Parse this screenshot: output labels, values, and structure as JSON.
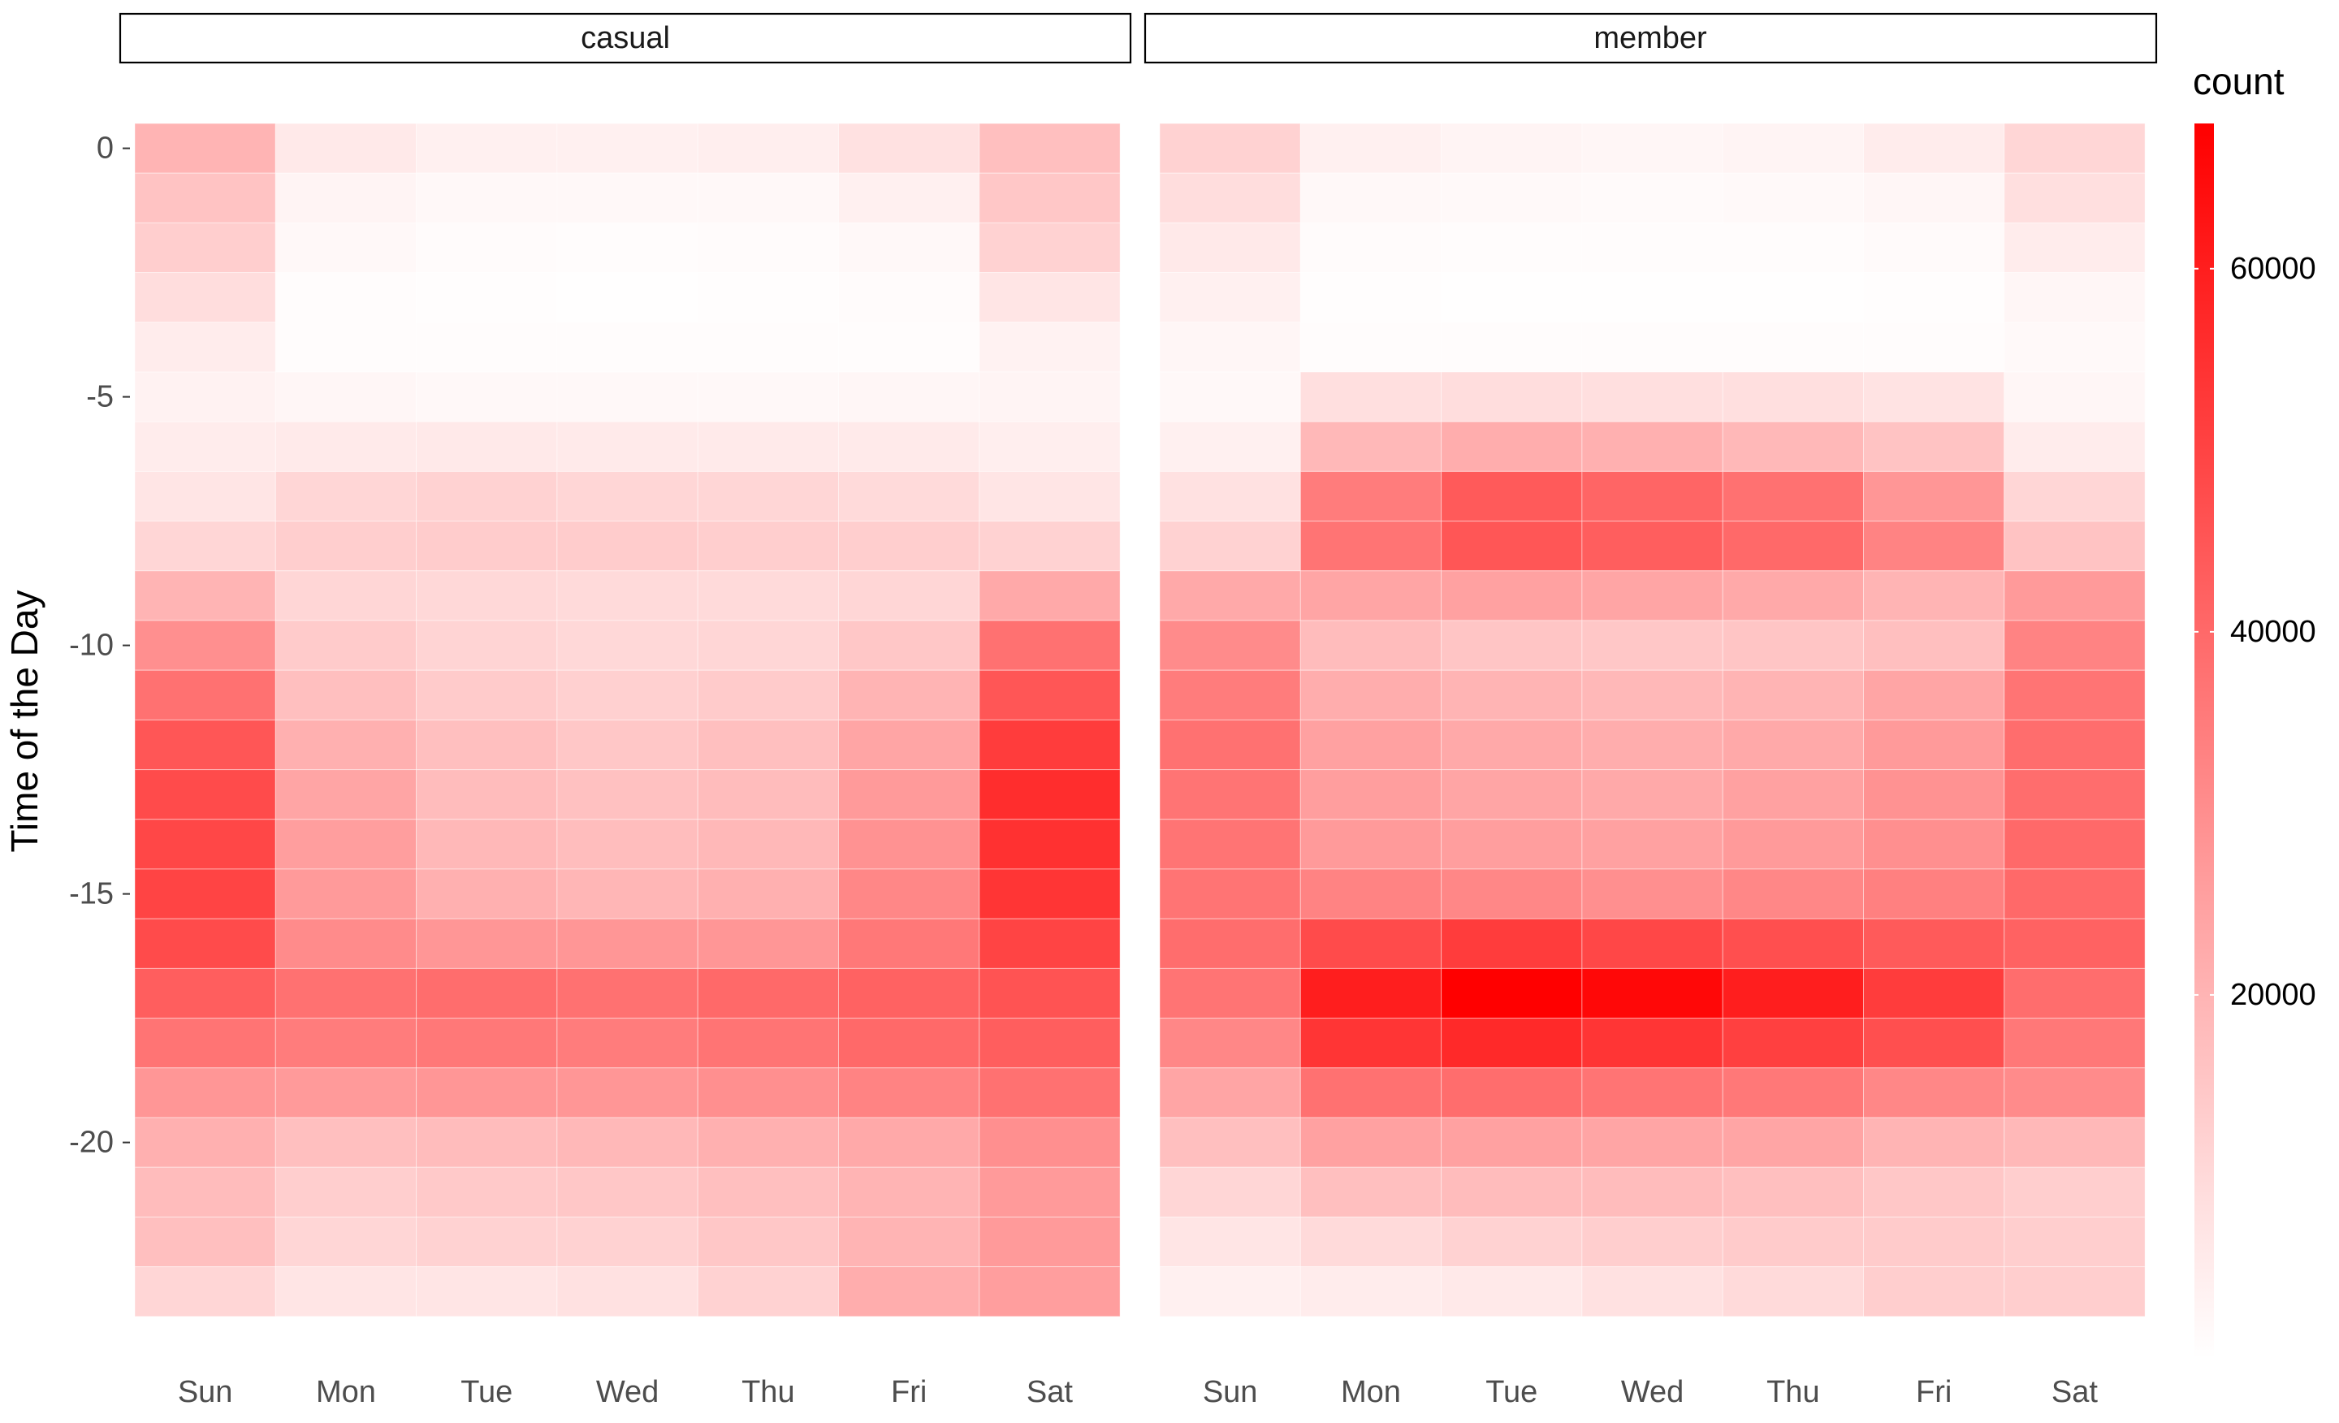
{
  "chart_data": {
    "type": "heatmap",
    "ylabel": "Time of the Day",
    "xlabel": "",
    "panels": [
      {
        "name": "casual",
        "days": [
          "Sun",
          "Mon",
          "Tue",
          "Wed",
          "Thu",
          "Fri",
          "Sat"
        ],
        "hours": [
          0,
          -1,
          -2,
          -3,
          -4,
          -5,
          -6,
          -7,
          -8,
          -9,
          -10,
          -11,
          -12,
          -13,
          -14,
          -15,
          -16,
          -17,
          -18,
          -19,
          -20,
          -21,
          -22,
          -23
        ],
        "values": [
          [
            20000,
            6000,
            4000,
            4000,
            4500,
            8000,
            17000
          ],
          [
            16000,
            3000,
            2000,
            1800,
            2000,
            4000,
            15000
          ],
          [
            13000,
            1800,
            1000,
            900,
            1000,
            2000,
            12000
          ],
          [
            9000,
            900,
            500,
            400,
            500,
            1000,
            7000
          ],
          [
            5000,
            800,
            700,
            700,
            700,
            900,
            3500
          ],
          [
            3500,
            2500,
            2000,
            2000,
            2000,
            2500,
            3000
          ],
          [
            5000,
            5500,
            6000,
            5500,
            5500,
            5500,
            4500
          ],
          [
            7000,
            11000,
            12000,
            11000,
            11000,
            10000,
            7000
          ],
          [
            11000,
            13000,
            13500,
            13500,
            13000,
            13000,
            12000
          ],
          [
            20000,
            11000,
            10500,
            10000,
            10000,
            11000,
            23000
          ],
          [
            30000,
            14000,
            11500,
            10500,
            11000,
            15000,
            38000
          ],
          [
            38000,
            17000,
            14000,
            12500,
            14000,
            20000,
            45000
          ],
          [
            45000,
            21000,
            17000,
            15000,
            17000,
            24000,
            52000
          ],
          [
            48000,
            24000,
            18000,
            16500,
            18000,
            27000,
            56000
          ],
          [
            49000,
            26000,
            19000,
            17500,
            19000,
            29000,
            55000
          ],
          [
            50000,
            27000,
            21000,
            19500,
            21000,
            32000,
            54000
          ],
          [
            48000,
            31000,
            28000,
            28000,
            28000,
            36000,
            50000
          ],
          [
            43000,
            38000,
            39000,
            38000,
            40000,
            42000,
            46000
          ],
          [
            37000,
            35000,
            36000,
            35000,
            37000,
            40000,
            43000
          ],
          [
            28000,
            27000,
            28000,
            28000,
            30000,
            33000,
            38000
          ],
          [
            21000,
            17000,
            18000,
            19000,
            21000,
            23000,
            30000
          ],
          [
            18000,
            13000,
            14500,
            15000,
            17000,
            20000,
            27000
          ],
          [
            17000,
            11000,
            12000,
            12000,
            15000,
            20000,
            27000
          ],
          [
            11000,
            7000,
            7000,
            8000,
            12000,
            22000,
            26000
          ]
        ]
      },
      {
        "name": "member",
        "days": [
          "Sun",
          "Mon",
          "Tue",
          "Wed",
          "Thu",
          "Fri",
          "Sat"
        ],
        "hours": [
          0,
          -1,
          -2,
          -3,
          -4,
          -5,
          -6,
          -7,
          -8,
          -9,
          -10,
          -11,
          -12,
          -13,
          -14,
          -15,
          -16,
          -17,
          -18,
          -19,
          -20,
          -21,
          -22,
          -23
        ],
        "values": [
          [
            12000,
            4000,
            3000,
            2500,
            3000,
            5000,
            11000
          ],
          [
            9000,
            2000,
            1500,
            1300,
            1500,
            2500,
            8500
          ],
          [
            6000,
            1000,
            700,
            700,
            800,
            1300,
            5000
          ],
          [
            4000,
            600,
            400,
            400,
            400,
            600,
            2500
          ],
          [
            2500,
            900,
            900,
            900,
            900,
            900,
            1500
          ],
          [
            2000,
            8500,
            9000,
            8500,
            8500,
            7500,
            2500
          ],
          [
            4000,
            19000,
            22000,
            21000,
            19000,
            16000,
            5000
          ],
          [
            8000,
            35000,
            44000,
            41000,
            38000,
            28000,
            11000
          ],
          [
            12000,
            37000,
            45000,
            43000,
            40000,
            33000,
            16000
          ],
          [
            23000,
            24000,
            25000,
            24000,
            23000,
            20000,
            27000
          ],
          [
            31000,
            18000,
            15500,
            15000,
            15500,
            17000,
            33000
          ],
          [
            35000,
            22000,
            20000,
            19000,
            20000,
            24000,
            37000
          ],
          [
            38000,
            25000,
            23000,
            22000,
            23000,
            27000,
            39000
          ],
          [
            37000,
            26000,
            24000,
            23000,
            25000,
            29000,
            39000
          ],
          [
            37000,
            27000,
            26000,
            25000,
            27000,
            30000,
            40000
          ],
          [
            37000,
            33000,
            32000,
            30000,
            32000,
            34000,
            40000
          ],
          [
            39000,
            48000,
            52000,
            49000,
            47000,
            44000,
            42000
          ],
          [
            37000,
            60000,
            68000,
            66000,
            60000,
            52000,
            39000
          ],
          [
            32000,
            54000,
            57000,
            54000,
            51000,
            47000,
            36000
          ],
          [
            24000,
            38000,
            39000,
            37000,
            36000,
            32000,
            31000
          ],
          [
            17000,
            25000,
            25000,
            24000,
            24000,
            20000,
            19000
          ],
          [
            11000,
            17000,
            18000,
            18000,
            17000,
            15000,
            13000
          ],
          [
            7000,
            10000,
            12000,
            13000,
            14000,
            14000,
            13000
          ],
          [
            4000,
            5000,
            6000,
            8000,
            10000,
            13000,
            13000
          ]
        ]
      }
    ],
    "y_ticks": [
      0,
      -5,
      -10,
      -15,
      -20
    ],
    "y_tick_labels": [
      "0",
      "-5",
      "-10",
      "-15",
      "-20"
    ],
    "legend": {
      "title": "count",
      "ticks": [
        20000,
        40000,
        60000
      ],
      "tick_labels": [
        "20000",
        "40000",
        "60000"
      ],
      "range": [
        0,
        68000
      ],
      "low_color": "#ffffff",
      "high_color": "#ff0000",
      "placement": "right"
    },
    "grid": false
  }
}
